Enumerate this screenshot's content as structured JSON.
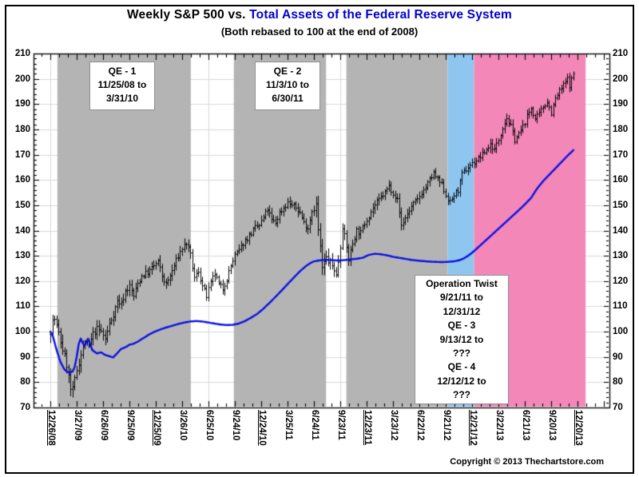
{
  "title": {
    "prefix": "Weekly S&P 500 vs. ",
    "accent": "Total Assets of the Federal Reserve System",
    "subtitle": "(Both rebased to 100 at the end of 2008)"
  },
  "footer": {
    "copyright": "Copyright © 2013 Thechartstore.com"
  },
  "colors": {
    "title_accent": "#0000cc",
    "sp500_bars": "#000000",
    "fed_assets_line": "#0a10e6",
    "qe_shade_gray": "#b4b4b4",
    "twist_qe3_shade_blue": "#8ec6f0",
    "qe3_qe4_shade_pink": "#f287b8",
    "gridline": "#d8d8d8",
    "frame": "#000000"
  },
  "annotations": {
    "qe1": {
      "lines": [
        "QE - 1",
        "11/25/08 to",
        "3/31/10"
      ]
    },
    "qe2": {
      "lines": [
        "QE - 2",
        "11/3/10 to",
        "6/30/11"
      ]
    },
    "twist": {
      "lines": [
        "Operation Twist",
        "9/21/11 to",
        "12/31/12",
        "QE - 3",
        "9/13/12 to",
        "???",
        "QE - 4",
        "12/12/12 to",
        "???"
      ]
    }
  },
  "chart_data": {
    "type": "mixed",
    "title": "Weekly S&P 500 vs. Total Assets of the Federal Reserve System",
    "subtitle": "(Both rebased to 100 at the end of 2008)",
    "grid": true,
    "x_tick_labels": [
      "12/26/08",
      "3/27/09",
      "6/26/09",
      "9/25/09",
      "12/25/09",
      "3/26/10",
      "6/25/10",
      "9/24/10",
      "12/24/10",
      "3/25/11",
      "6/24/11",
      "9/23/11",
      "12/23/11",
      "3/23/12",
      "6/22/12",
      "9/21/12",
      "12/21/12",
      "3/22/13",
      "6/21/13",
      "9/20/13",
      "12/20/13"
    ],
    "weeks_per_tick": 13,
    "y_axis": {
      "min": 70,
      "max": 210,
      "step": 10,
      "minor_step": 2
    },
    "regions": [
      {
        "name": "QE - 1",
        "from": "11/25/08",
        "to": "3/31/10",
        "week_start": 3.5,
        "week_end": 69.3,
        "color": "#b4b4b4"
      },
      {
        "name": "QE - 2",
        "from": "11/3/10",
        "to": "6/30/11",
        "week_start": 90.5,
        "week_end": 136,
        "color": "#b4b4b4"
      },
      {
        "name": "Operation Twist",
        "from": "9/21/11",
        "to": "9/13/12",
        "week_start": 146,
        "week_end": 196,
        "color": "#b4b4b4"
      },
      {
        "name": "Operation Twist + QE - 3",
        "from": "9/13/12",
        "to": "12/12/12",
        "week_start": 196,
        "week_end": 209,
        "color": "#8ec6f0"
      },
      {
        "name": "QE - 3 + QE - 4",
        "from": "12/12/12",
        "to": "???",
        "week_start": 209,
        "week_end": 264,
        "color": "#f287b8"
      }
    ],
    "series": [
      {
        "name": "S&P 500",
        "type": "ohlc",
        "color": "#000000",
        "seed": 7,
        "weeks": 258,
        "keypoints": [
          [
            0,
            100
          ],
          [
            1,
            104
          ],
          [
            2,
            105
          ],
          [
            4,
            99
          ],
          [
            6,
            93
          ],
          [
            8,
            87
          ],
          [
            10,
            77
          ],
          [
            11,
            76.5
          ],
          [
            13,
            85
          ],
          [
            15,
            91
          ],
          [
            17,
            96
          ],
          [
            19,
            94
          ],
          [
            21,
            99
          ],
          [
            23,
            101
          ],
          [
            25,
            100
          ],
          [
            27,
            97
          ],
          [
            29,
            103
          ],
          [
            31,
            107
          ],
          [
            33,
            112
          ],
          [
            35,
            111
          ],
          [
            37,
            116
          ],
          [
            39,
            118
          ],
          [
            41,
            114
          ],
          [
            43,
            119
          ],
          [
            45,
            122
          ],
          [
            47,
            123
          ],
          [
            49,
            124
          ],
          [
            51,
            126
          ],
          [
            53,
            127.5
          ],
          [
            55,
            122
          ],
          [
            57,
            118.5
          ],
          [
            59,
            122
          ],
          [
            61,
            126
          ],
          [
            63,
            130
          ],
          [
            65,
            133
          ],
          [
            67,
            135
          ],
          [
            69,
            130
          ],
          [
            71,
            121
          ],
          [
            73,
            124
          ],
          [
            75,
            118
          ],
          [
            77,
            114
          ],
          [
            79,
            119
          ],
          [
            81,
            123
          ],
          [
            83,
            118.5
          ],
          [
            85,
            117
          ],
          [
            87,
            121
          ],
          [
            89,
            126
          ],
          [
            91,
            130
          ],
          [
            93,
            132
          ],
          [
            95,
            135
          ],
          [
            97,
            137
          ],
          [
            99,
            139
          ],
          [
            101,
            141
          ],
          [
            103,
            142
          ],
          [
            105,
            145
          ],
          [
            107,
            148.5
          ],
          [
            109,
            144
          ],
          [
            111,
            143
          ],
          [
            113,
            147
          ],
          [
            115,
            149
          ],
          [
            117,
            151
          ],
          [
            119,
            150
          ],
          [
            121,
            149
          ],
          [
            123,
            147
          ],
          [
            125,
            143
          ],
          [
            127,
            141
          ],
          [
            129,
            148
          ],
          [
            131,
            150
          ],
          [
            132,
            140
          ],
          [
            133,
            133
          ],
          [
            134,
            125
          ],
          [
            136,
            129
          ],
          [
            138,
            127
          ],
          [
            140,
            125
          ],
          [
            141,
            122
          ],
          [
            143,
            134
          ],
          [
            144,
            142
          ],
          [
            146,
            133
          ],
          [
            147,
            128.5
          ],
          [
            149,
            135
          ],
          [
            151,
            140
          ],
          [
            153,
            139
          ],
          [
            155,
            143
          ],
          [
            157,
            146
          ],
          [
            159,
            149
          ],
          [
            161,
            151
          ],
          [
            163,
            153
          ],
          [
            165,
            155
          ],
          [
            167,
            157.5
          ],
          [
            169,
            155
          ],
          [
            171,
            152
          ],
          [
            173,
            142
          ],
          [
            175,
            145
          ],
          [
            177,
            148
          ],
          [
            179,
            150.5
          ],
          [
            181,
            152
          ],
          [
            183,
            155
          ],
          [
            185,
            157
          ],
          [
            187,
            160
          ],
          [
            189,
            162.5
          ],
          [
            191,
            160
          ],
          [
            193,
            158
          ],
          [
            195,
            154
          ],
          [
            197,
            151
          ],
          [
            199,
            154
          ],
          [
            201,
            156
          ],
          [
            203,
            162
          ],
          [
            205,
            164
          ],
          [
            207,
            166
          ],
          [
            209,
            167
          ],
          [
            211,
            168.5
          ],
          [
            213,
            170
          ],
          [
            215,
            172
          ],
          [
            217,
            174
          ],
          [
            219,
            172
          ],
          [
            221,
            176
          ],
          [
            223,
            181
          ],
          [
            225,
            184.5
          ],
          [
            227,
            181
          ],
          [
            229,
            176
          ],
          [
            231,
            178
          ],
          [
            233,
            181
          ],
          [
            235,
            185
          ],
          [
            237,
            188.5
          ],
          [
            239,
            184
          ],
          [
            241,
            186
          ],
          [
            243,
            189
          ],
          [
            245,
            191
          ],
          [
            247,
            186.5
          ],
          [
            249,
            192
          ],
          [
            251,
            195
          ],
          [
            253,
            197.5
          ],
          [
            255,
            200
          ],
          [
            256,
            197.5
          ],
          [
            258,
            202
          ]
        ],
        "volatility": [
          [
            0,
            2.8
          ],
          [
            10,
            3.2
          ],
          [
            20,
            2.4
          ],
          [
            40,
            2.2
          ],
          [
            60,
            2.2
          ],
          [
            100,
            2.0
          ],
          [
            128,
            2.0
          ],
          [
            132,
            3.4
          ],
          [
            140,
            2.8
          ],
          [
            148,
            2.2
          ],
          [
            170,
            2.0
          ],
          [
            200,
            1.9
          ],
          [
            230,
            1.9
          ],
          [
            258,
            1.8
          ]
        ]
      },
      {
        "name": "Total Assets of the Federal Reserve System",
        "type": "line",
        "color": "#0a10e6",
        "width": 2.4,
        "keypoints": [
          [
            0,
            100
          ],
          [
            1,
            99
          ],
          [
            3,
            93
          ],
          [
            5,
            88
          ],
          [
            7,
            85
          ],
          [
            9,
            83.8
          ],
          [
            11,
            84.2
          ],
          [
            12,
            86
          ],
          [
            13,
            90
          ],
          [
            14,
            95
          ],
          [
            15,
            97.3
          ],
          [
            16,
            95.5
          ],
          [
            17,
            94.3
          ],
          [
            18,
            96.5
          ],
          [
            19,
            96.8
          ],
          [
            20,
            94
          ],
          [
            21,
            92.5
          ],
          [
            23,
            91.4
          ],
          [
            25,
            91.8
          ],
          [
            27,
            90.8
          ],
          [
            29,
            90.3
          ],
          [
            31,
            89.8
          ],
          [
            33,
            91.5
          ],
          [
            35,
            93.2
          ],
          [
            37,
            93.8
          ],
          [
            39,
            94.8
          ],
          [
            41,
            95.2
          ],
          [
            43,
            96
          ],
          [
            45,
            97
          ],
          [
            47,
            98
          ],
          [
            49,
            99
          ],
          [
            51,
            99.8
          ],
          [
            54,
            100.8
          ],
          [
            57,
            101.6
          ],
          [
            60,
            102.3
          ],
          [
            63,
            103
          ],
          [
            66,
            103.6
          ],
          [
            69,
            104
          ],
          [
            72,
            104.2
          ],
          [
            75,
            104
          ],
          [
            78,
            103.6
          ],
          [
            81,
            103.2
          ],
          [
            84,
            102.8
          ],
          [
            87,
            102.6
          ],
          [
            90,
            102.7
          ],
          [
            93,
            103.2
          ],
          [
            96,
            104.2
          ],
          [
            99,
            105.5
          ],
          [
            102,
            107
          ],
          [
            105,
            109
          ],
          [
            108,
            111.3
          ],
          [
            111,
            113.7
          ],
          [
            114,
            116.2
          ],
          [
            117,
            118.8
          ],
          [
            120,
            121.3
          ],
          [
            123,
            123.8
          ],
          [
            126,
            125.9
          ],
          [
            128,
            127
          ],
          [
            130,
            127.8
          ],
          [
            133,
            128.2
          ],
          [
            136,
            128.4
          ],
          [
            139,
            128.3
          ],
          [
            142,
            128.1
          ],
          [
            145,
            128.3
          ],
          [
            148,
            128.6
          ],
          [
            151,
            128.8
          ],
          [
            154,
            129.2
          ],
          [
            157,
            130.3
          ],
          [
            160,
            130.8
          ],
          [
            163,
            130.6
          ],
          [
            166,
            130.2
          ],
          [
            169,
            129.6
          ],
          [
            172,
            129.2
          ],
          [
            175,
            128.8
          ],
          [
            178,
            128.4
          ],
          [
            181,
            128.1
          ],
          [
            184,
            127.9
          ],
          [
            187,
            127.7
          ],
          [
            190,
            127.6
          ],
          [
            193,
            127.5
          ],
          [
            196,
            127.6
          ],
          [
            199,
            127.8
          ],
          [
            202,
            128.3
          ],
          [
            204,
            129
          ],
          [
            206,
            130
          ],
          [
            208,
            131.2
          ],
          [
            210,
            132.6
          ],
          [
            213,
            134.8
          ],
          [
            216,
            137
          ],
          [
            219,
            139.2
          ],
          [
            222,
            141.4
          ],
          [
            225,
            143.6
          ],
          [
            228,
            145.8
          ],
          [
            231,
            148
          ],
          [
            234,
            150.3
          ],
          [
            237,
            152.8
          ],
          [
            240,
            156.5
          ],
          [
            243,
            159.5
          ],
          [
            246,
            162
          ],
          [
            249,
            164.5
          ],
          [
            252,
            167
          ],
          [
            255,
            169.5
          ],
          [
            258,
            171.8
          ]
        ]
      }
    ]
  }
}
